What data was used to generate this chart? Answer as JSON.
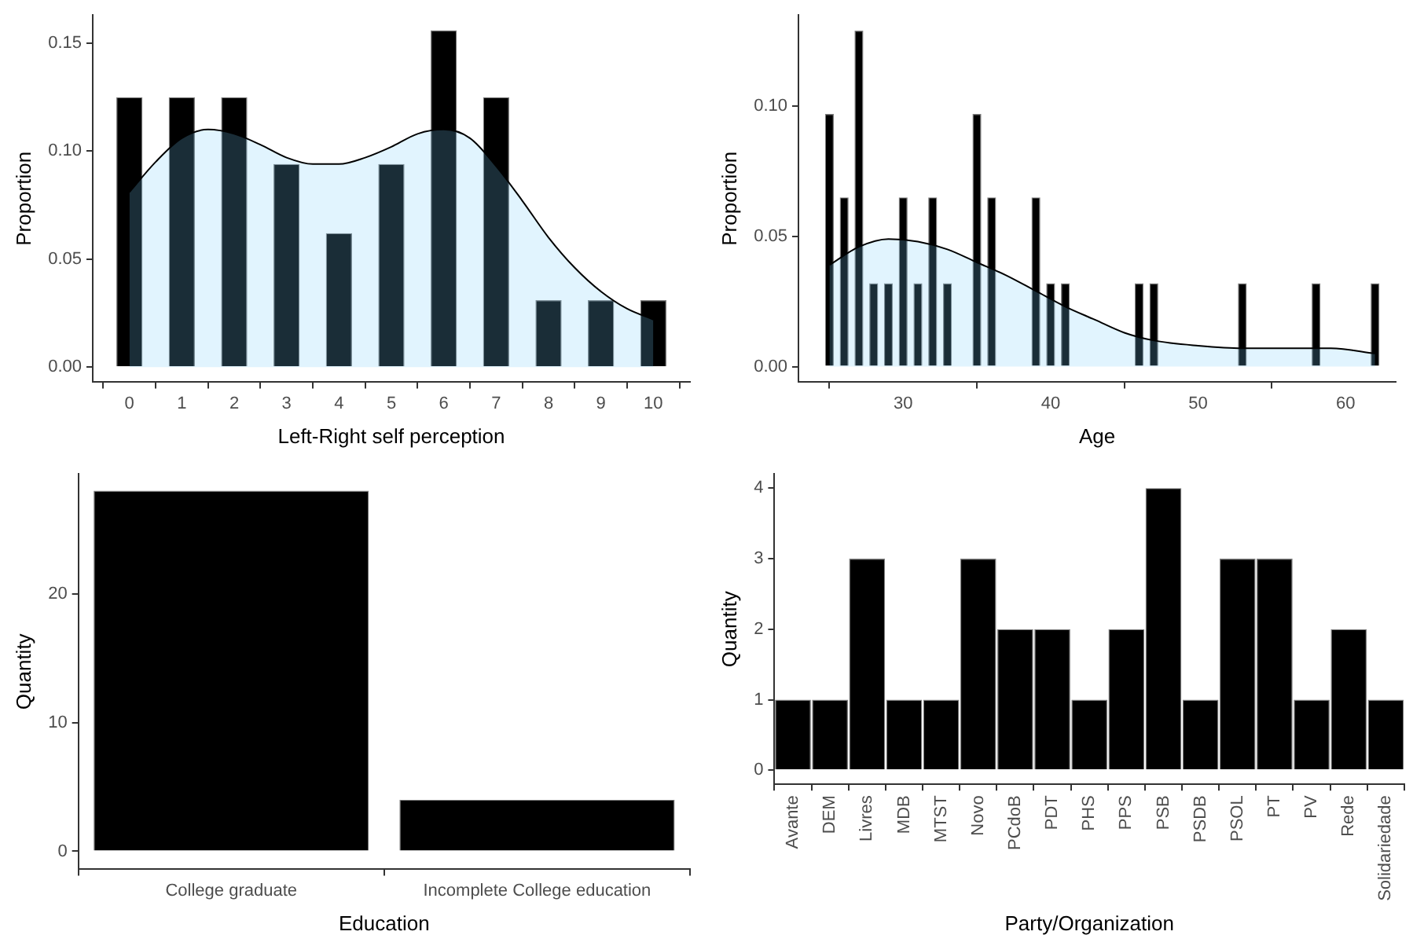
{
  "chart_data": [
    {
      "type": "bar",
      "xlabel": "Left-Right self perception",
      "ylabel": "Proportion",
      "x": [
        0,
        1,
        2,
        3,
        4,
        5,
        6,
        7,
        8,
        9,
        10
      ],
      "series": [
        {
          "color": "#000000",
          "values": [
            0.125,
            0.125,
            0.125,
            0.094,
            0.062,
            0.094,
            0.156,
            0.125,
            0.031,
            0.031,
            0.031
          ]
        },
        {
          "type": "area",
          "color": "#78cdfa",
          "x": [
            0,
            0.5,
            1,
            1.5,
            2,
            2.5,
            3,
            3.5,
            4,
            4.5,
            5,
            5.5,
            6,
            6.5,
            7,
            7.5,
            8,
            8.5,
            9,
            9.5,
            10
          ],
          "values": [
            0.081,
            0.095,
            0.106,
            0.11,
            0.108,
            0.103,
            0.097,
            0.094,
            0.094,
            0.097,
            0.102,
            0.108,
            0.11,
            0.106,
            0.093,
            0.077,
            0.06,
            0.046,
            0.035,
            0.027,
            0.022
          ]
        }
      ],
      "xlim": [
        -0.7,
        10.7
      ],
      "xticks": [
        0,
        1,
        2,
        3,
        4,
        5,
        6,
        7,
        8,
        9,
        10
      ],
      "ylim": [
        -0.007,
        0.163
      ],
      "yticks": [
        {
          "value": 0,
          "label": "0.00"
        },
        {
          "value": 0.05,
          "label": "0.05"
        },
        {
          "value": 0.1,
          "label": "0.10"
        },
        {
          "value": 0.15,
          "label": "0.15"
        }
      ]
    },
    {
      "type": "bar",
      "xlabel": "Age",
      "ylabel": "Proportion",
      "x": [
        25,
        26,
        27,
        28,
        29,
        30,
        31,
        32,
        33,
        35,
        36,
        39,
        40,
        41,
        46,
        47,
        53,
        58,
        62
      ],
      "series": [
        {
          "color": "#000000",
          "values": [
            0.097,
            0.065,
            0.129,
            0.032,
            0.032,
            0.065,
            0.032,
            0.065,
            0.032,
            0.097,
            0.065,
            0.065,
            0.032,
            0.032,
            0.032,
            0.032,
            0.032,
            0.032,
            0.032
          ]
        },
        {
          "type": "area",
          "color": "#78cdfa",
          "x": [
            25,
            27,
            29,
            31,
            33,
            35,
            37,
            39,
            41,
            43,
            45,
            47,
            50,
            53,
            56,
            59,
            62
          ],
          "values": [
            0.039,
            0.046,
            0.049,
            0.048,
            0.045,
            0.04,
            0.035,
            0.029,
            0.023,
            0.018,
            0.013,
            0.01,
            0.008,
            0.007,
            0.007,
            0.007,
            0.005
          ]
        }
      ],
      "xlim": [
        22.9,
        63.4
      ],
      "xticks": [
        30,
        40,
        50,
        60
      ],
      "ylim": [
        -0.006,
        0.135
      ],
      "yticks": [
        {
          "value": 0,
          "label": "0.00"
        },
        {
          "value": 0.05,
          "label": "0.05"
        },
        {
          "value": 0.1,
          "label": "0.10"
        }
      ]
    },
    {
      "type": "bar",
      "xlabel": "Education",
      "ylabel": "Quantity",
      "categories": [
        "College graduate",
        "Incomplete College education"
      ],
      "series": [
        {
          "color": "#000000",
          "values": [
            28,
            4
          ]
        }
      ],
      "ylim": [
        -1.4,
        29.3
      ],
      "yticks": [
        0,
        10,
        20
      ]
    },
    {
      "type": "bar",
      "xlabel": "Party/Organization",
      "ylabel": "Quantity",
      "categories": [
        "Avante",
        "DEM",
        "Livres",
        "MDB",
        "MTST",
        "Novo",
        "PCdoB",
        "PDT",
        "PHS",
        "PPS",
        "PSB",
        "PSDB",
        "PSOL",
        "PT",
        "PV",
        "Rede",
        "Solidariedade"
      ],
      "series": [
        {
          "color": "#000000",
          "values": [
            1,
            1,
            3,
            1,
            1,
            3,
            2,
            2,
            1,
            2,
            4,
            1,
            3,
            3,
            1,
            2,
            1
          ]
        }
      ],
      "ylim": [
        -0.2,
        4.2
      ],
      "yticks": [
        0,
        1,
        2,
        3,
        4
      ]
    }
  ]
}
